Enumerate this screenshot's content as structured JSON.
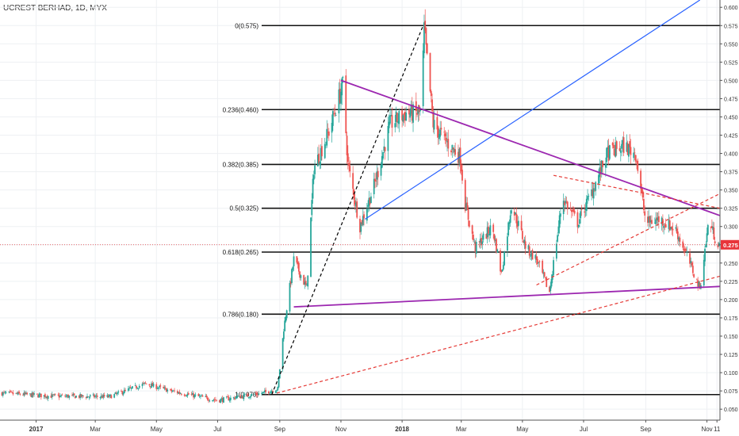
{
  "title": "UCREST BERHAD, 1D, MYX",
  "chart_data": {
    "type": "candlestick",
    "price_axis": {
      "ticks": [
        "0.600",
        "0.575",
        "0.550",
        "0.525",
        "0.500",
        "0.475",
        "0.450",
        "0.425",
        "0.400",
        "0.375",
        "0.350",
        "0.325",
        "0.300",
        "0.275",
        "0.250",
        "0.225",
        "0.200",
        "0.175",
        "0.150",
        "0.125",
        "0.100",
        "0.075",
        "0.050"
      ],
      "range": [
        0.035,
        0.61
      ]
    },
    "time_axis": {
      "labels": [
        "2017",
        "Mar",
        "May",
        "Jul",
        "Sep",
        "Nov",
        "2018",
        "Mar",
        "May",
        "Jul",
        "Sep",
        "Nov",
        "11"
      ],
      "dates": [
        "2017-01-01",
        "2017-03-01",
        "2017-05-01",
        "2017-07-01",
        "2017-09-01",
        "2017-11-01",
        "2018-01-01",
        "2018-03-01",
        "2018-05-01",
        "2018-07-01",
        "2018-09-01",
        "2018-11-01",
        "2018-11-11"
      ],
      "range": [
        "2016-11-26",
        "2018-11-14"
      ]
    },
    "current_price": {
      "label": "0.275",
      "value": 0.275,
      "color": "#e8353b"
    },
    "fib_levels": [
      {
        "label": "0(0.575)",
        "value": 0.575
      },
      {
        "label": "0.236(0.460)",
        "value": 0.46
      },
      {
        "label": "0.382(0.385)",
        "value": 0.385
      },
      {
        "label": "0.5(0.325)",
        "value": 0.325
      },
      {
        "label": "0.618(0.265)",
        "value": 0.265
      },
      {
        "label": "0.786(0.180)",
        "value": 0.18
      },
      {
        "label": "1(0.070)",
        "value": 0.07
      }
    ],
    "trendlines": [
      {
        "kind": "purple-resistance",
        "color": "#9c27b0",
        "style": "solid",
        "from": [
          "2017-11-01",
          0.5
        ],
        "to": [
          "2018-11-14",
          0.315
        ]
      },
      {
        "kind": "purple-support",
        "color": "#9c27b0",
        "style": "solid",
        "from": [
          "2017-09-15",
          0.19
        ],
        "to": [
          "2018-11-14",
          0.218
        ]
      },
      {
        "kind": "blue-channel",
        "color": "#2962ff",
        "style": "solid",
        "from": [
          "2017-11-25",
          0.31
        ],
        "to": [
          "2018-10-25",
          0.61
        ]
      },
      {
        "kind": "black-swing",
        "color": "#000000",
        "style": "dashed",
        "from": [
          "2017-08-24",
          0.07
        ],
        "to": [
          "2018-01-22",
          0.575
        ]
      },
      {
        "kind": "red-support",
        "color": "#e53935",
        "style": "dashed",
        "from": [
          "2017-08-29",
          0.072
        ],
        "to": [
          "2018-11-14",
          0.232
        ]
      },
      {
        "kind": "red-wedge-upper",
        "color": "#e53935",
        "style": "dashed",
        "from": [
          "2018-06-01",
          0.37
        ],
        "to": [
          "2018-11-14",
          0.325
        ]
      },
      {
        "kind": "red-wedge-lower",
        "color": "#e53935",
        "style": "dashed",
        "from": [
          "2018-05-15",
          0.22
        ],
        "to": [
          "2018-11-14",
          0.345
        ]
      }
    ],
    "price_path": [
      [
        "2016-11-26",
        0.072
      ],
      [
        "2017-01-15",
        0.068
      ],
      [
        "2017-03-15",
        0.067
      ],
      [
        "2017-04-20",
        0.085
      ],
      [
        "2017-05-15",
        0.075
      ],
      [
        "2017-07-01",
        0.062
      ],
      [
        "2017-08-15",
        0.072
      ],
      [
        "2017-08-30",
        0.078
      ],
      [
        "2017-09-05",
        0.16
      ],
      [
        "2017-09-15",
        0.255
      ],
      [
        "2017-09-28",
        0.215
      ],
      [
        "2017-10-05",
        0.38
      ],
      [
        "2017-10-20",
        0.43
      ],
      [
        "2017-11-03",
        0.495
      ],
      [
        "2017-11-08",
        0.385
      ],
      [
        "2017-11-20",
        0.3
      ],
      [
        "2017-12-05",
        0.36
      ],
      [
        "2017-12-20",
        0.44
      ],
      [
        "2018-01-05",
        0.455
      ],
      [
        "2018-01-20",
        0.455
      ],
      [
        "2018-01-23",
        0.57
      ],
      [
        "2018-02-01",
        0.44
      ],
      [
        "2018-02-15",
        0.415
      ],
      [
        "2018-02-28",
        0.395
      ],
      [
        "2018-03-05",
        0.33
      ],
      [
        "2018-03-15",
        0.27
      ],
      [
        "2018-04-01",
        0.3
      ],
      [
        "2018-04-10",
        0.235
      ],
      [
        "2018-04-20",
        0.33
      ],
      [
        "2018-05-05",
        0.27
      ],
      [
        "2018-05-15",
        0.255
      ],
      [
        "2018-05-28",
        0.21
      ],
      [
        "2018-06-10",
        0.34
      ],
      [
        "2018-06-25",
        0.305
      ],
      [
        "2018-07-10",
        0.35
      ],
      [
        "2018-07-25",
        0.4
      ],
      [
        "2018-08-10",
        0.41
      ],
      [
        "2018-08-22",
        0.4
      ],
      [
        "2018-09-01",
        0.305
      ],
      [
        "2018-09-15",
        0.31
      ],
      [
        "2018-10-01",
        0.295
      ],
      [
        "2018-10-12",
        0.26
      ],
      [
        "2018-10-25",
        0.215
      ],
      [
        "2018-11-03",
        0.31
      ],
      [
        "2018-11-10",
        0.28
      ],
      [
        "2018-11-14",
        0.275
      ]
    ]
  }
}
